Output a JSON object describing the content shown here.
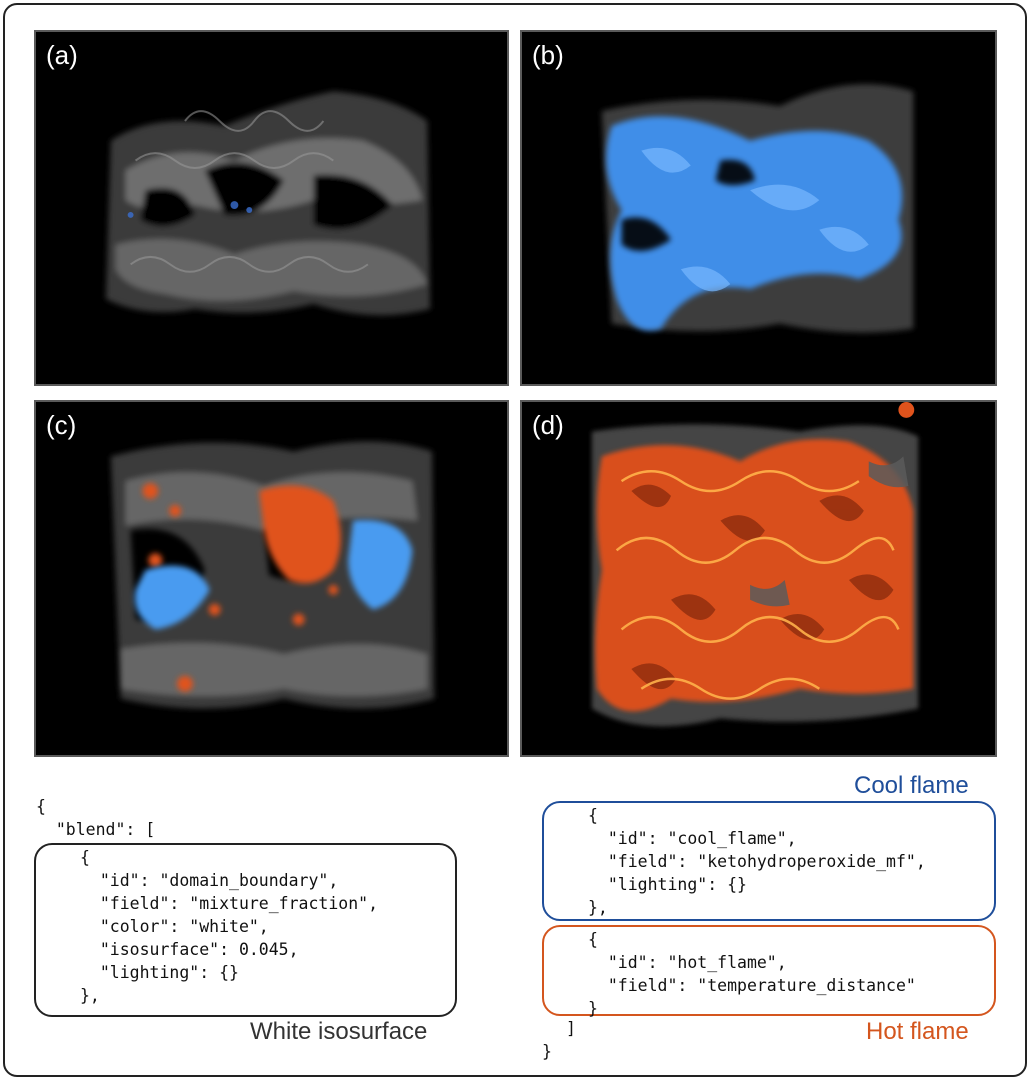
{
  "panels": {
    "a": {
      "label": "(a)"
    },
    "b": {
      "label": "(b)"
    },
    "c": {
      "label": "(c)"
    },
    "d": {
      "label": "(d)"
    }
  },
  "colors": {
    "isosurface": "#8c8c8c",
    "cool_flame": "#4a9bf0",
    "hot_flame": "#e0531c",
    "cool_box_border": "#1f4e9a",
    "hot_box_border": "#d4561e",
    "cool_caption": "#1f4e9a",
    "hot_caption": "#d4561e",
    "white_caption": "#333333"
  },
  "left_code": {
    "outer": "{\n  \"blend\": [",
    "inner": "{\n  \"id\": \"domain_boundary\",\n  \"field\": \"mixture_fraction\",\n  \"color\": \"white\",\n  \"isosurface\": 0.045,\n  \"lighting\": {}\n},"
  },
  "right_code": {
    "cool": "{\n  \"id\": \"cool_flame\",\n  \"field\": \"ketohydroperoxide_mf\",\n  \"lighting\": {}\n},",
    "hot": "{\n  \"id\": \"hot_flame\",\n  \"field\": \"temperature_distance\"\n}",
    "close_bracket": "]",
    "close_brace": "}"
  },
  "captions": {
    "white_isosurface": "White isosurface",
    "cool_flame": "Cool flame",
    "hot_flame": "Hot flame"
  }
}
